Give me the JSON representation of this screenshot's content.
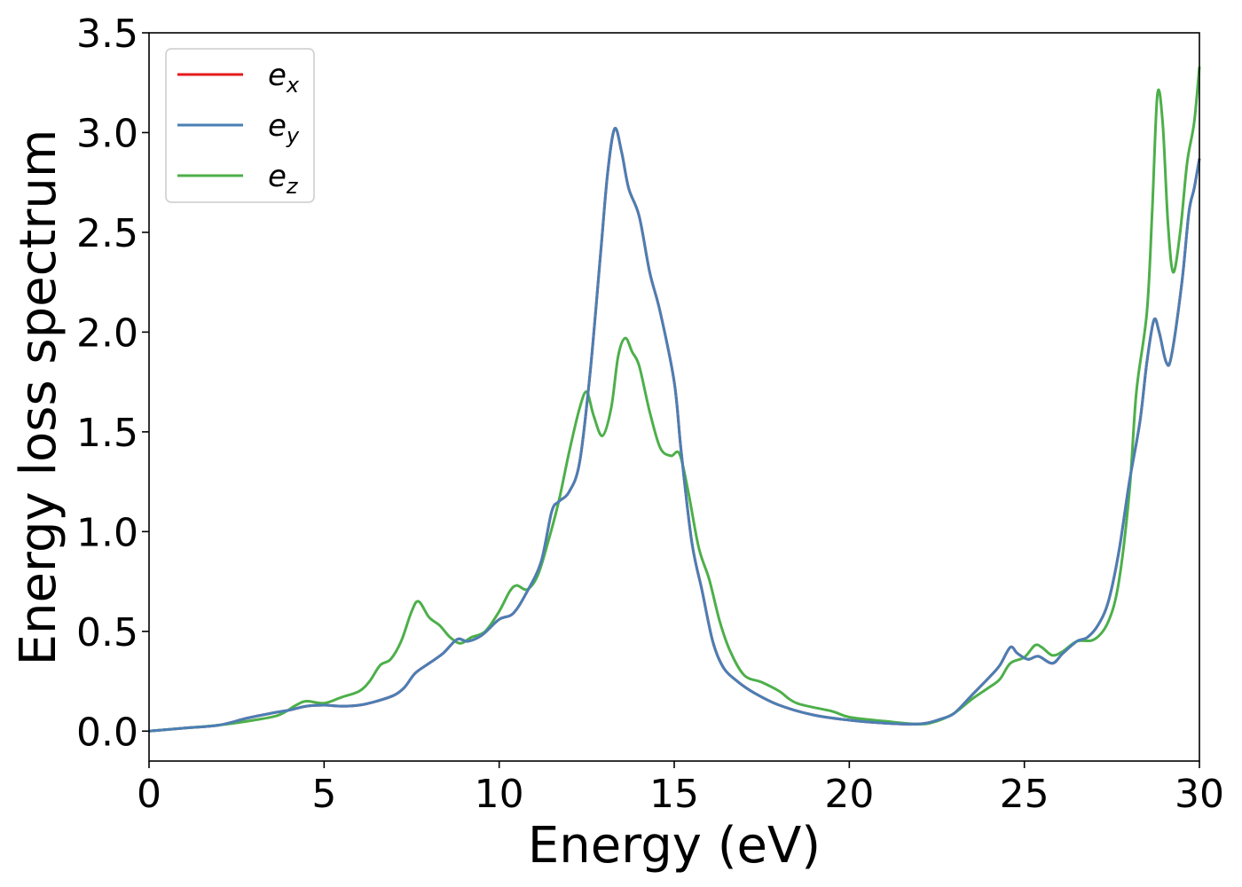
{
  "chart_data": {
    "type": "line",
    "title": "",
    "xlabel": "Energy (eV)",
    "ylabel": "Energy loss spectrum",
    "xlim": [
      0,
      30
    ],
    "ylim": [
      -0.15,
      3.5
    ],
    "xticks": [
      0,
      5,
      10,
      15,
      20,
      25,
      30
    ],
    "xtick_labels": [
      "0",
      "5",
      "10",
      "15",
      "20",
      "25",
      "30"
    ],
    "yticks": [
      0.0,
      0.5,
      1.0,
      1.5,
      2.0,
      2.5,
      3.0,
      3.5
    ],
    "ytick_labels": [
      "0.0",
      "0.5",
      "1.0",
      "1.5",
      "2.0",
      "2.5",
      "3.0",
      "3.5"
    ],
    "grid": false,
    "legend_position": "top-left",
    "series": [
      {
        "name": "e",
        "subscript": "x",
        "color": "#e41a1c",
        "points": [
          [
            0,
            0
          ],
          [
            1,
            0.015
          ],
          [
            2,
            0.03
          ],
          [
            2.8,
            0.065
          ],
          [
            3.5,
            0.09
          ],
          [
            4,
            0.105
          ],
          [
            4.5,
            0.125
          ],
          [
            5,
            0.13
          ],
          [
            5.5,
            0.125
          ],
          [
            6,
            0.13
          ],
          [
            6.5,
            0.15
          ],
          [
            7,
            0.18
          ],
          [
            7.3,
            0.22
          ],
          [
            7.6,
            0.29
          ],
          [
            8,
            0.34
          ],
          [
            8.4,
            0.39
          ],
          [
            8.8,
            0.46
          ],
          [
            9.1,
            0.45
          ],
          [
            9.5,
            0.48
          ],
          [
            10,
            0.56
          ],
          [
            10.4,
            0.59
          ],
          [
            10.8,
            0.7
          ],
          [
            11.2,
            0.85
          ],
          [
            11.5,
            1.1
          ],
          [
            11.7,
            1.15
          ],
          [
            12,
            1.2
          ],
          [
            12.3,
            1.35
          ],
          [
            12.6,
            1.8
          ],
          [
            12.9,
            2.4
          ],
          [
            13.1,
            2.8
          ],
          [
            13.3,
            3.02
          ],
          [
            13.5,
            2.9
          ],
          [
            13.7,
            2.72
          ],
          [
            14,
            2.58
          ],
          [
            14.3,
            2.3
          ],
          [
            14.6,
            2.1
          ],
          [
            15,
            1.75
          ],
          [
            15.2,
            1.4
          ],
          [
            15.5,
            0.95
          ],
          [
            15.8,
            0.7
          ],
          [
            16.1,
            0.45
          ],
          [
            16.4,
            0.32
          ],
          [
            16.8,
            0.25
          ],
          [
            17.3,
            0.19
          ],
          [
            18,
            0.13
          ],
          [
            19,
            0.08
          ],
          [
            20,
            0.055
          ],
          [
            21,
            0.04
          ],
          [
            21.8,
            0.035
          ],
          [
            22.2,
            0.04
          ],
          [
            22.6,
            0.06
          ],
          [
            23,
            0.09
          ],
          [
            23.5,
            0.18
          ],
          [
            24,
            0.27
          ],
          [
            24.3,
            0.33
          ],
          [
            24.6,
            0.42
          ],
          [
            24.8,
            0.39
          ],
          [
            25.1,
            0.36
          ],
          [
            25.4,
            0.375
          ],
          [
            25.8,
            0.34
          ],
          [
            26.1,
            0.39
          ],
          [
            26.5,
            0.45
          ],
          [
            26.8,
            0.47
          ],
          [
            27.1,
            0.53
          ],
          [
            27.4,
            0.65
          ],
          [
            27.7,
            0.9
          ],
          [
            28,
            1.25
          ],
          [
            28.3,
            1.55
          ],
          [
            28.5,
            1.85
          ],
          [
            28.7,
            2.06
          ],
          [
            28.85,
            2.0
          ],
          [
            29.05,
            1.85
          ],
          [
            29.2,
            1.88
          ],
          [
            29.5,
            2.25
          ],
          [
            29.7,
            2.6
          ],
          [
            29.85,
            2.72
          ],
          [
            30,
            2.87
          ]
        ]
      },
      {
        "name": "e",
        "subscript": "y",
        "color": "#4a7fb5",
        "points": [
          [
            0,
            0
          ],
          [
            1,
            0.015
          ],
          [
            2,
            0.03
          ],
          [
            2.8,
            0.065
          ],
          [
            3.5,
            0.09
          ],
          [
            4,
            0.105
          ],
          [
            4.5,
            0.125
          ],
          [
            5,
            0.13
          ],
          [
            5.5,
            0.125
          ],
          [
            6,
            0.13
          ],
          [
            6.5,
            0.15
          ],
          [
            7,
            0.18
          ],
          [
            7.3,
            0.22
          ],
          [
            7.6,
            0.29
          ],
          [
            8,
            0.34
          ],
          [
            8.4,
            0.39
          ],
          [
            8.8,
            0.46
          ],
          [
            9.1,
            0.45
          ],
          [
            9.5,
            0.48
          ],
          [
            10,
            0.56
          ],
          [
            10.4,
            0.59
          ],
          [
            10.8,
            0.7
          ],
          [
            11.2,
            0.85
          ],
          [
            11.5,
            1.1
          ],
          [
            11.7,
            1.15
          ],
          [
            12,
            1.2
          ],
          [
            12.3,
            1.35
          ],
          [
            12.6,
            1.8
          ],
          [
            12.9,
            2.4
          ],
          [
            13.1,
            2.8
          ],
          [
            13.3,
            3.02
          ],
          [
            13.5,
            2.9
          ],
          [
            13.7,
            2.72
          ],
          [
            14,
            2.58
          ],
          [
            14.3,
            2.3
          ],
          [
            14.6,
            2.1
          ],
          [
            15,
            1.75
          ],
          [
            15.2,
            1.4
          ],
          [
            15.5,
            0.95
          ],
          [
            15.8,
            0.7
          ],
          [
            16.1,
            0.45
          ],
          [
            16.4,
            0.32
          ],
          [
            16.8,
            0.25
          ],
          [
            17.3,
            0.19
          ],
          [
            18,
            0.13
          ],
          [
            19,
            0.08
          ],
          [
            20,
            0.055
          ],
          [
            21,
            0.04
          ],
          [
            21.8,
            0.035
          ],
          [
            22.2,
            0.04
          ],
          [
            22.6,
            0.06
          ],
          [
            23,
            0.09
          ],
          [
            23.5,
            0.18
          ],
          [
            24,
            0.27
          ],
          [
            24.3,
            0.33
          ],
          [
            24.6,
            0.42
          ],
          [
            24.8,
            0.39
          ],
          [
            25.1,
            0.36
          ],
          [
            25.4,
            0.375
          ],
          [
            25.8,
            0.34
          ],
          [
            26.1,
            0.39
          ],
          [
            26.5,
            0.45
          ],
          [
            26.8,
            0.47
          ],
          [
            27.1,
            0.53
          ],
          [
            27.4,
            0.65
          ],
          [
            27.7,
            0.9
          ],
          [
            28,
            1.25
          ],
          [
            28.3,
            1.55
          ],
          [
            28.5,
            1.85
          ],
          [
            28.7,
            2.06
          ],
          [
            28.85,
            2.0
          ],
          [
            29.05,
            1.85
          ],
          [
            29.2,
            1.88
          ],
          [
            29.5,
            2.25
          ],
          [
            29.7,
            2.6
          ],
          [
            29.85,
            2.72
          ],
          [
            30,
            2.87
          ]
        ]
      },
      {
        "name": "e",
        "subscript": "z",
        "color": "#4daf4a",
        "points": [
          [
            0,
            0
          ],
          [
            1,
            0.015
          ],
          [
            2,
            0.03
          ],
          [
            3,
            0.055
          ],
          [
            3.7,
            0.08
          ],
          [
            4.2,
            0.13
          ],
          [
            4.5,
            0.15
          ],
          [
            5,
            0.14
          ],
          [
            5.5,
            0.17
          ],
          [
            6,
            0.2
          ],
          [
            6.3,
            0.25
          ],
          [
            6.6,
            0.33
          ],
          [
            6.9,
            0.36
          ],
          [
            7.2,
            0.45
          ],
          [
            7.5,
            0.6
          ],
          [
            7.7,
            0.65
          ],
          [
            8,
            0.57
          ],
          [
            8.3,
            0.53
          ],
          [
            8.6,
            0.47
          ],
          [
            8.9,
            0.44
          ],
          [
            9.2,
            0.47
          ],
          [
            9.6,
            0.5
          ],
          [
            10,
            0.6
          ],
          [
            10.3,
            0.7
          ],
          [
            10.5,
            0.73
          ],
          [
            10.8,
            0.71
          ],
          [
            11.1,
            0.78
          ],
          [
            11.4,
            0.95
          ],
          [
            11.7,
            1.15
          ],
          [
            12,
            1.4
          ],
          [
            12.3,
            1.62
          ],
          [
            12.5,
            1.7
          ],
          [
            12.7,
            1.58
          ],
          [
            12.95,
            1.48
          ],
          [
            13.2,
            1.62
          ],
          [
            13.4,
            1.88
          ],
          [
            13.6,
            1.97
          ],
          [
            13.8,
            1.9
          ],
          [
            14,
            1.83
          ],
          [
            14.3,
            1.6
          ],
          [
            14.6,
            1.42
          ],
          [
            14.9,
            1.38
          ],
          [
            15.15,
            1.39
          ],
          [
            15.4,
            1.2
          ],
          [
            15.7,
            0.92
          ],
          [
            16,
            0.76
          ],
          [
            16.3,
            0.55
          ],
          [
            16.6,
            0.4
          ],
          [
            17,
            0.28
          ],
          [
            17.5,
            0.245
          ],
          [
            18,
            0.2
          ],
          [
            18.5,
            0.14
          ],
          [
            19.5,
            0.1
          ],
          [
            20,
            0.07
          ],
          [
            21,
            0.05
          ],
          [
            22,
            0.035
          ],
          [
            22.5,
            0.05
          ],
          [
            23,
            0.09
          ],
          [
            23.5,
            0.16
          ],
          [
            24,
            0.22
          ],
          [
            24.3,
            0.26
          ],
          [
            24.6,
            0.34
          ],
          [
            25,
            0.37
          ],
          [
            25.3,
            0.43
          ],
          [
            25.5,
            0.42
          ],
          [
            25.8,
            0.38
          ],
          [
            26.1,
            0.4
          ],
          [
            26.5,
            0.45
          ],
          [
            27,
            0.46
          ],
          [
            27.4,
            0.55
          ],
          [
            27.7,
            0.75
          ],
          [
            28,
            1.2
          ],
          [
            28.2,
            1.7
          ],
          [
            28.5,
            2.1
          ],
          [
            28.65,
            2.6
          ],
          [
            28.8,
            3.19
          ],
          [
            28.95,
            3.05
          ],
          [
            29.1,
            2.55
          ],
          [
            29.25,
            2.3
          ],
          [
            29.45,
            2.5
          ],
          [
            29.65,
            2.85
          ],
          [
            29.85,
            3.05
          ],
          [
            30,
            3.33
          ]
        ]
      }
    ]
  }
}
